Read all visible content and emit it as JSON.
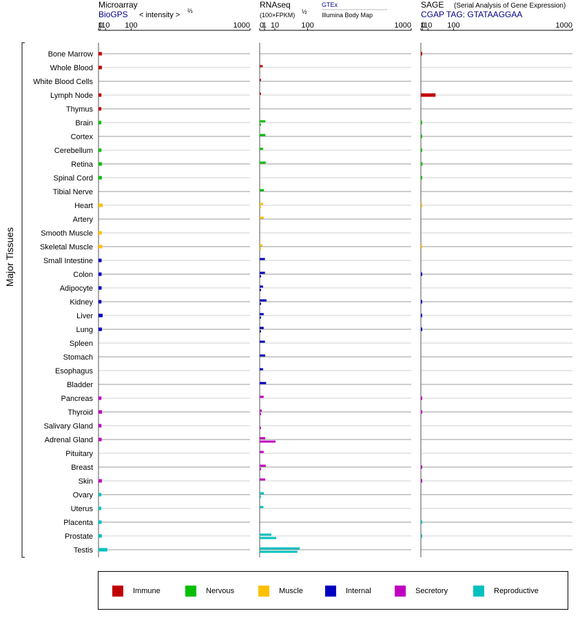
{
  "chart_data": {
    "type": "bar",
    "orientation": "horizontal",
    "y_axis_label": "Major Tissues",
    "categories": [
      "Bone Marrow",
      "Whole Blood",
      "White Blood Cells",
      "Lymph Node",
      "Thymus",
      "Brain",
      "Cortex",
      "Cerebellum",
      "Retina",
      "Spinal Cord",
      "Tibial Nerve",
      "Heart",
      "Artery",
      "Smooth Muscle",
      "Skeletal Muscle",
      "Small Intestine",
      "Colon",
      "Adipocyte",
      "Kidney",
      "Liver",
      "Lung",
      "Spleen",
      "Stomach",
      "Esophagus",
      "Bladder",
      "Pancreas",
      "Thyroid",
      "Salivary Gland",
      "Adrenal Gland",
      "Pituitary",
      "Breast",
      "Skin",
      "Ovary",
      "Uterus",
      "Placenta",
      "Prostate",
      "Testis"
    ],
    "groups": [
      "Immune",
      "Immune",
      "Immune",
      "Immune",
      "Immune",
      "Nervous",
      "Nervous",
      "Nervous",
      "Nervous",
      "Nervous",
      "Nervous",
      "Muscle",
      "Muscle",
      "Muscle",
      "Muscle",
      "Internal",
      "Internal",
      "Internal",
      "Internal",
      "Internal",
      "Internal",
      "Internal",
      "Internal",
      "Internal",
      "Internal",
      "Secretory",
      "Secretory",
      "Secretory",
      "Secretory",
      "Secretory",
      "Secretory",
      "Secretory",
      "Reproductive",
      "Reproductive",
      "Reproductive",
      "Reproductive",
      "Reproductive"
    ],
    "tick_labels": [
      "0",
      "1",
      "10",
      "100",
      "1000"
    ],
    "panels": [
      {
        "name": "microarray",
        "title": "Microarray",
        "subtitle": "BioGPS",
        "unit": "< intensity >",
        "unit_exp": "⅔",
        "xlim": [
          0,
          1000
        ],
        "scale": "power-2/3",
        "series": [
          {
            "name": "BioGPS",
            "values": [
              3.3,
              3.3,
              null,
              2.7,
              2.5,
              2.5,
              null,
              2.7,
              3.5,
              3.3,
              null,
              4.5,
              null,
              3.3,
              4.0,
              2.9,
              2.9,
              2.9,
              2.7,
              4.5,
              3.3,
              null,
              null,
              null,
              null,
              2.7,
              3.6,
              2.7,
              2.9,
              null,
              null,
              3.3,
              2.5,
              2.5,
              2.9,
              3.3,
              14.0
            ]
          }
        ]
      },
      {
        "name": "rnaseq",
        "title": "RNAseq",
        "unit": "(100×FPKM)",
        "unit_exp": "½",
        "legend_top": "GTEx",
        "legend_bottom": "Illumina Body Map",
        "xlim": [
          0,
          1000
        ],
        "scale": "sqrt",
        "series": [
          {
            "name": "GTEx",
            "values": [
              null,
              0.4,
              0.01,
              0.01,
              null,
              1.4,
              1.4,
              0.5,
              1.6,
              null,
              0.8,
              0.5,
              0.7,
              null,
              0.3,
              1.2,
              1.2,
              0.5,
              2.0,
              0.7,
              0.7,
              1.2,
              1.3,
              0.5,
              1.8,
              0.7,
              0.2,
              null,
              1.3,
              0.7,
              1.6,
              1.3,
              0.8,
              0.6,
              null,
              6.0,
              70.0
            ]
          },
          {
            "name": "Illumina Body Map",
            "values": [
              null,
              null,
              null,
              null,
              null,
              0.01,
              null,
              null,
              null,
              null,
              null,
              0.02,
              null,
              null,
              0.02,
              null,
              0.01,
              0.02,
              0.01,
              0.01,
              0.01,
              null,
              null,
              null,
              null,
              null,
              0.02,
              0.02,
              11.0,
              null,
              0.01,
              null,
              0.01,
              null,
              null,
              12.0,
              62.0
            ]
          }
        ]
      },
      {
        "name": "sage",
        "title": "SAGE",
        "title_note": "(Serial Analysis of Gene Expression)",
        "subtitle": "CGAP TAG: GTATAAGGAA",
        "xlim": [
          0,
          1000
        ],
        "scale": "power-2/3",
        "series": [
          {
            "name": "SAGE",
            "values": [
              0.05,
              null,
              null,
              30.0,
              null,
              0.03,
              0.03,
              0.03,
              1.1,
              0.03,
              null,
              0.02,
              null,
              null,
              0.02,
              null,
              0.05,
              null,
              0.05,
              0.05,
              0.05,
              null,
              null,
              null,
              null,
              0.05,
              0.05,
              null,
              null,
              null,
              0.05,
              0.05,
              null,
              null,
              0.03,
              0.03,
              null
            ]
          }
        ]
      }
    ],
    "legend": [
      {
        "name": "Immune",
        "color": "#c00000"
      },
      {
        "name": "Nervous",
        "color": "#00c000"
      },
      {
        "name": "Muscle",
        "color": "#ffc000"
      },
      {
        "name": "Internal",
        "color": "#0000c0"
      },
      {
        "name": "Secretory",
        "color": "#c000c0"
      },
      {
        "name": "Reproductive",
        "color": "#00c0c0"
      }
    ],
    "grid": true,
    "legend_position": "bottom"
  }
}
